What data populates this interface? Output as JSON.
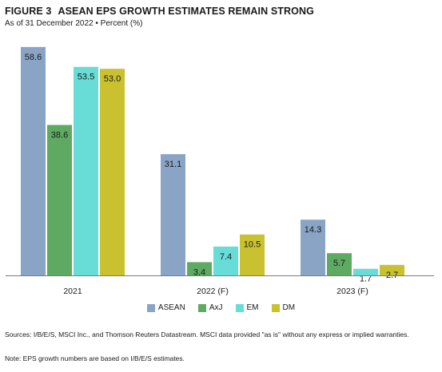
{
  "figure_label": "FIGURE 3",
  "chart_data": {
    "type": "bar",
    "title": "ASEAN EPS GROWTH ESTIMATES REMAIN STRONG",
    "subtitle": "As of 31 December 2022 • Percent (%)",
    "categories": [
      "2021",
      "2022 (F)",
      "2023 (F)"
    ],
    "series": [
      {
        "name": "ASEAN",
        "color": "#8AA4C6",
        "values": [
          58.6,
          31.1,
          14.3
        ]
      },
      {
        "name": "AxJ",
        "color": "#5FAA62",
        "values": [
          38.6,
          3.4,
          5.7
        ]
      },
      {
        "name": "EM",
        "color": "#68DCD6",
        "values": [
          53.5,
          7.4,
          1.7
        ]
      },
      {
        "name": "DM",
        "color": "#C9C130",
        "values": [
          53.0,
          10.5,
          2.7
        ]
      }
    ],
    "value_labels": [
      [
        "58.6",
        "31.1",
        "14.3"
      ],
      [
        "38.6",
        "3.4",
        "5.7"
      ],
      [
        "53.5",
        "7.4",
        "1.7"
      ],
      [
        "53.0",
        "10.5",
        "2.7"
      ]
    ],
    "ylim": [
      0,
      60
    ],
    "grid": false,
    "legend_position": "bottom"
  },
  "sources": "Sources: I/B/E/S, MSCI Inc., and Thomson Reuters Datastream. MSCI data provided \"as is\" without any express or implied warranties.",
  "note": "Note: EPS growth numbers are based on I/B/E/S estimates."
}
